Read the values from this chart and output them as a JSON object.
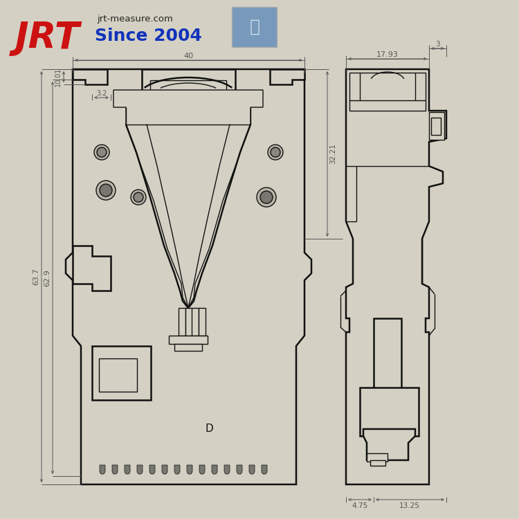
{
  "bg_color": "#d4d1c4",
  "line_color": "#111111",
  "dim_color": "#555555",
  "fill_main": "#d4d1c4",
  "fill_dark": "#b8b5a8",
  "title_jrt": "JRT",
  "title_since": "Since 2004",
  "title_url": "jrt-measure.com",
  "dim_40": "40",
  "dim_3": "3",
  "dim_1001": "10.01",
  "dim_32": "3.2",
  "dim_3221": "32.21",
  "dim_637": "63.7",
  "dim_629": "62.9",
  "dim_1793": "17.93",
  "dim_475": "4.75",
  "dim_1325": "13.25",
  "label_D": "D"
}
